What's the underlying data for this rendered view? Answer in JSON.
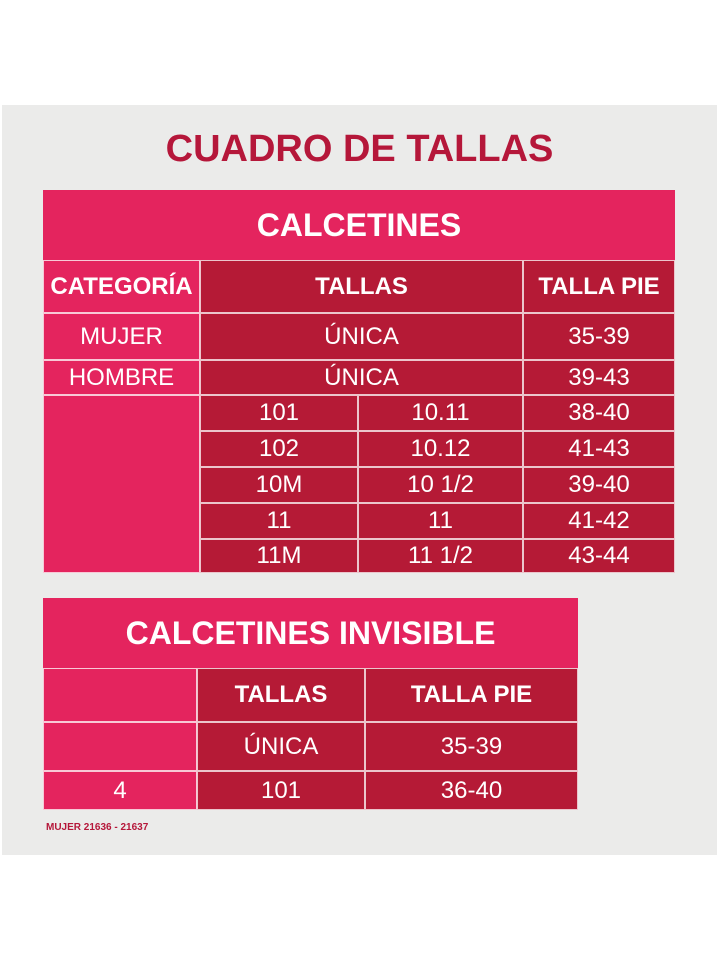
{
  "title": "CUADRO DE TALLAS",
  "table1": {
    "title": "CALCETINES",
    "headers": [
      "CATEGORÍA",
      "TALLAS",
      "TALLA PIE"
    ],
    "rows": [
      {
        "category": "MUJER",
        "talla": "ÚNICA",
        "pie": "35-39"
      },
      {
        "category": "HOMBRE",
        "talla": "ÚNICA",
        "pie": "39-43"
      }
    ],
    "sizes": [
      [
        "101",
        "10.11",
        "38-40"
      ],
      [
        "102",
        "10.12",
        "41-43"
      ],
      [
        "10M",
        "10 1/2",
        "39-40"
      ],
      [
        "11",
        "11",
        "41-42"
      ],
      [
        "11M",
        "11 1/2",
        "43-44"
      ]
    ]
  },
  "table2": {
    "title": "CALCETINES INVISIBLE",
    "headers": [
      "TALLAS",
      "TALLA PIE"
    ],
    "rows": [
      {
        "talla": "ÚNICA",
        "pie": "35-39"
      },
      {
        "category": "4",
        "talla": "101",
        "pie": "36-40"
      }
    ]
  },
  "footer": "MUJER 21636 - 21637"
}
